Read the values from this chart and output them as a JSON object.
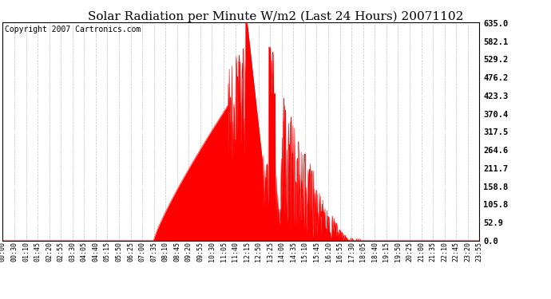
{
  "title": "Solar Radiation per Minute W/m2 (Last 24 Hours) 20071102",
  "copyright_text": "Copyright 2007 Cartronics.com",
  "ytick_labels": [
    0.0,
    52.9,
    105.8,
    158.8,
    211.7,
    264.6,
    317.5,
    370.4,
    423.3,
    476.2,
    529.2,
    582.1,
    635.0
  ],
  "ymax": 635.0,
  "ymin": 0.0,
  "fill_color": "#FF0000",
  "line_color": "#FF0000",
  "background_color": "#FFFFFF",
  "plot_bg_color": "#FFFFFF",
  "grid_color": "#C0C0C0",
  "h_grid_color": "#FFFFFF",
  "dashed_line_color": "#FF0000",
  "title_fontsize": 11,
  "copyright_fontsize": 7,
  "tick_label_fontsize": 7.5,
  "x_tick_labels": [
    "00:00",
    "00:30",
    "01:10",
    "01:45",
    "02:20",
    "02:55",
    "03:30",
    "04:05",
    "04:40",
    "05:15",
    "05:50",
    "06:25",
    "07:00",
    "07:35",
    "08:10",
    "08:45",
    "09:20",
    "09:55",
    "10:30",
    "11:05",
    "11:40",
    "12:15",
    "12:50",
    "13:25",
    "14:00",
    "14:35",
    "15:10",
    "15:45",
    "16:20",
    "16:55",
    "17:30",
    "18:05",
    "18:40",
    "19:15",
    "19:50",
    "20:25",
    "21:00",
    "21:35",
    "22:10",
    "22:45",
    "23:20",
    "23:55"
  ],
  "num_points": 1440,
  "sr": 455,
  "ss": 1050,
  "peak_idx": 735,
  "peak_val": 635.0
}
